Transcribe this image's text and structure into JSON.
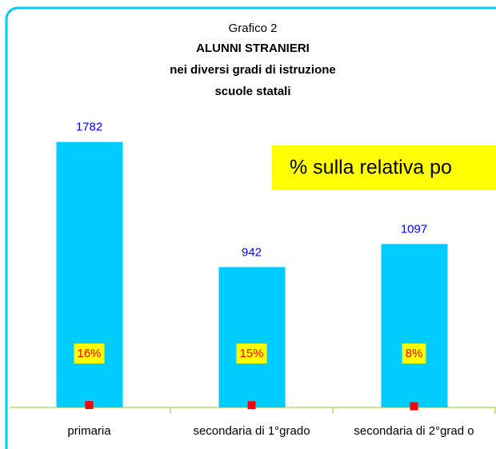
{
  "chart_data": {
    "type": "bar",
    "title": "Grafico 2",
    "subtitle": [
      "ALUNNI STRANIERI",
      "nei diversi gradi di istruzione",
      "scuole statali"
    ],
    "annotation": "% sulla relativa po",
    "categories": [
      "primaria",
      "secondaria di 1°grado",
      "secondaria di 2°grad o"
    ],
    "series": [
      {
        "color": "#00ccff",
        "values": [
          1782,
          942,
          1097
        ]
      },
      {
        "color": "#ff0000",
        "values": [
          16,
          15,
          8
        ],
        "value_labels": [
          "16%",
          "15%",
          "8%"
        ]
      }
    ],
    "ylim": [
      0,
      2000
    ]
  }
}
